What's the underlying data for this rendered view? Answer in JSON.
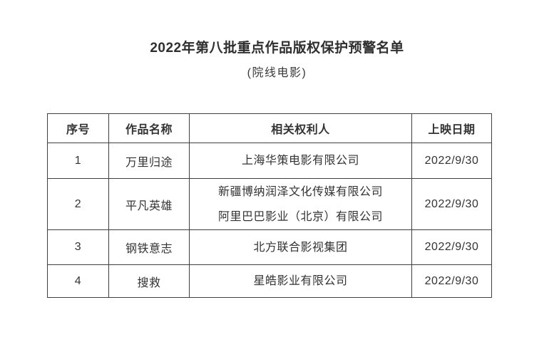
{
  "page": {
    "title": "2022年第八批重点作品版权保护预警名单",
    "subtitle": "(院线电影)"
  },
  "table": {
    "columns": {
      "serial": "序号",
      "work": "作品名称",
      "rights": "相关权利人",
      "date": "上映日期"
    },
    "rows": [
      {
        "no": "1",
        "work": "万里归途",
        "rights_holders": [
          "上海华策电影有限公司"
        ],
        "release_date": "2022/9/30"
      },
      {
        "no": "2",
        "work": "平凡英雄",
        "rights_holders": [
          "新疆博纳润泽文化传媒有限公司",
          "阿里巴巴影业（北京）有限公司"
        ],
        "release_date": "2022/9/30"
      },
      {
        "no": "3",
        "work": "钢铁意志",
        "rights_holders": [
          "北方联合影视集团"
        ],
        "release_date": "2022/9/30"
      },
      {
        "no": "4",
        "work": "搜救",
        "rights_holders": [
          "星皓影业有限公司"
        ],
        "release_date": "2022/9/30"
      }
    ]
  },
  "colors": {
    "text": "#333333",
    "border": "#3f3f3f",
    "background": "#ffffff"
  }
}
